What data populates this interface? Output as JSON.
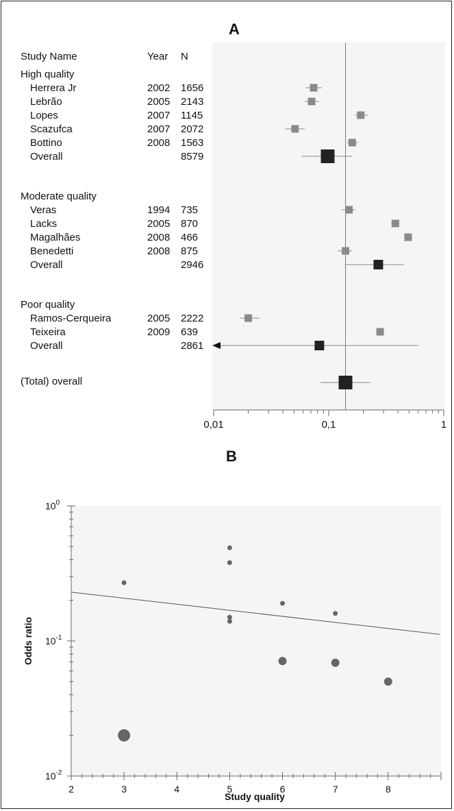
{
  "chart_data": [
    {
      "type": "forest",
      "title": "A",
      "columns": {
        "study": "Study Name",
        "year": "Year",
        "n": "N"
      },
      "xscale": "log",
      "xlim": [
        0.01,
        1
      ],
      "xticks": [
        "0,01",
        "0,1",
        "1"
      ],
      "groups": [
        {
          "name": "High quality",
          "studies": [
            {
              "name": "Herrera Jr",
              "year": "2002",
              "n": "1656",
              "or": 0.074,
              "lo": 0.063,
              "hi": 0.087
            },
            {
              "name": "Lebrão",
              "year": "2005",
              "n": "2143",
              "or": 0.071,
              "lo": 0.062,
              "hi": 0.082
            },
            {
              "name": "Lopes",
              "year": "2007",
              "n": "1145",
              "or": 0.19,
              "lo": 0.17,
              "hi": 0.22
            },
            {
              "name": "Scazufca",
              "year": "2007",
              "n": "2072",
              "or": 0.051,
              "lo": 0.042,
              "hi": 0.062
            },
            {
              "name": "Bottino",
              "year": "2008",
              "n": "1563",
              "or": 0.16,
              "lo": 0.145,
              "hi": 0.18
            }
          ],
          "overall": {
            "label": "Overall",
            "n": "8579",
            "or": 0.098,
            "lo": 0.058,
            "hi": 0.16
          }
        },
        {
          "name": "Moderate quality",
          "studies": [
            {
              "name": "Veras",
              "year": "1994",
              "n": "735",
              "or": 0.15,
              "lo": 0.13,
              "hi": 0.17
            },
            {
              "name": "Lacks",
              "year": "2005",
              "n": "870",
              "or": 0.38,
              "lo": 0.35,
              "hi": 0.41
            },
            {
              "name": "Magalhães",
              "year": "2008",
              "n": "466",
              "or": 0.49,
              "lo": 0.46,
              "hi": 0.53
            },
            {
              "name": "Benedetti",
              "year": "2008",
              "n": "875",
              "or": 0.14,
              "lo": 0.12,
              "hi": 0.16
            }
          ],
          "overall": {
            "label": "Overall",
            "n": "2946",
            "or": 0.27,
            "lo": 0.14,
            "hi": 0.45
          }
        },
        {
          "name": "Poor quality",
          "studies": [
            {
              "name": "Ramos-Cerqueira",
              "year": "2005",
              "n": "2222",
              "or": 0.02,
              "lo": 0.017,
              "hi": 0.025
            },
            {
              "name": "Teixeira",
              "year": "2009",
              "n": "639",
              "or": 0.28,
              "lo": 0.26,
              "hi": 0.3
            }
          ],
          "overall": {
            "label": "Overall",
            "n": "2861",
            "or": 0.083,
            "lo": 0.01,
            "hi": 0.6
          }
        }
      ],
      "total": {
        "label": "(Total) overall",
        "or": 0.14,
        "lo": 0.085,
        "hi": 0.23
      }
    },
    {
      "type": "scatter",
      "title": "B",
      "xlabel": "Study quality",
      "ylabel": "Odds ratio",
      "yscale": "log",
      "xlim": [
        2,
        9
      ],
      "ylim": [
        0.01,
        1
      ],
      "xticks": [
        "2",
        "3",
        "4",
        "5",
        "6",
        "7",
        "8"
      ],
      "yticks": [
        {
          "base": "10",
          "exp": "0"
        },
        {
          "base": "10",
          "exp": "-1"
        },
        {
          "base": "10",
          "exp": "-2"
        }
      ],
      "points": [
        {
          "x": 3,
          "y": 0.27,
          "size": "small"
        },
        {
          "x": 3,
          "y": 0.02,
          "size": "large"
        },
        {
          "x": 5,
          "y": 0.49,
          "size": "small"
        },
        {
          "x": 5,
          "y": 0.38,
          "size": "small"
        },
        {
          "x": 5,
          "y": 0.15,
          "size": "small"
        },
        {
          "x": 5,
          "y": 0.14,
          "size": "small"
        },
        {
          "x": 6,
          "y": 0.19,
          "size": "small"
        },
        {
          "x": 6,
          "y": 0.071,
          "size": "medium"
        },
        {
          "x": 7,
          "y": 0.16,
          "size": "small"
        },
        {
          "x": 7,
          "y": 0.069,
          "size": "medium"
        },
        {
          "x": 8,
          "y": 0.05,
          "size": "medium"
        }
      ],
      "regression": {
        "x": [
          2,
          9
        ],
        "y": [
          0.23,
          0.112
        ]
      }
    }
  ]
}
